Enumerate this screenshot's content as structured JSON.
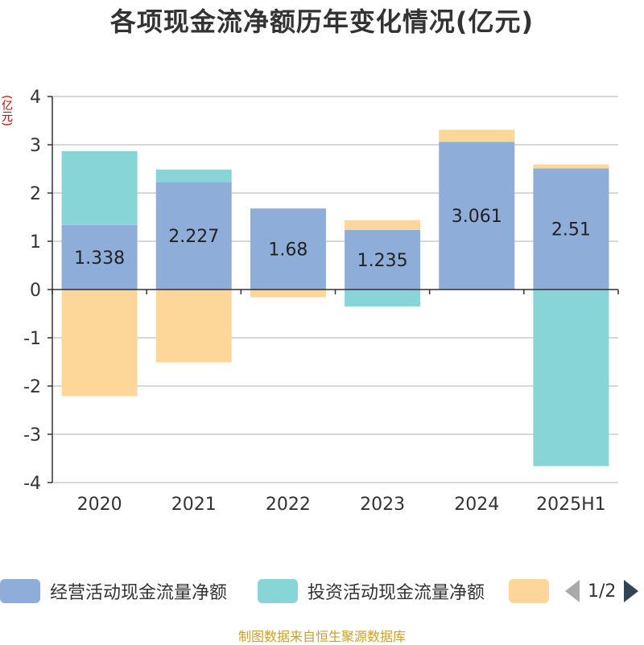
{
  "title": "各项现金流净额历年变化情况(亿元)",
  "unit_label": "(亿元)",
  "source": "制图数据来自恒生聚源数据库",
  "legend": [
    {
      "name": "经营活动现金流量净额",
      "color": "#8eadd9"
    },
    {
      "name": "投资活动现金流量净额",
      "color": "#88d5d8"
    },
    {
      "name": "",
      "color": "#fdd79a"
    }
  ],
  "pager": {
    "text": "1/2"
  },
  "chart_data": {
    "type": "bar",
    "stacked": true,
    "title": "各项现金流净额历年变化情况(亿元)",
    "ylabel": "(亿元)",
    "ylim": [
      -4,
      4
    ],
    "yticks": [
      -4,
      -3,
      -2,
      -1,
      0,
      1,
      2,
      3,
      4
    ],
    "grid": true,
    "legend_position": "bottom",
    "categories": [
      "2020",
      "2021",
      "2022",
      "2023",
      "2024",
      "2025H1"
    ],
    "series": [
      {
        "name": "经营活动现金流量净额",
        "color": "#8eadd9",
        "values": [
          1.338,
          2.227,
          1.68,
          1.235,
          3.061,
          2.51
        ],
        "labels": [
          "1.338",
          "2.227",
          "1.68",
          "1.235",
          "3.061",
          "2.51"
        ]
      },
      {
        "name": "投资活动现金流量净额",
        "color": "#88d5d8",
        "values": [
          1.53,
          0.26,
          0.0,
          -0.35,
          0.0,
          -3.66
        ]
      },
      {
        "color": "#fdd79a",
        "values": [
          -2.21,
          -1.51,
          -0.16,
          0.2,
          0.25,
          0.08
        ]
      }
    ]
  }
}
